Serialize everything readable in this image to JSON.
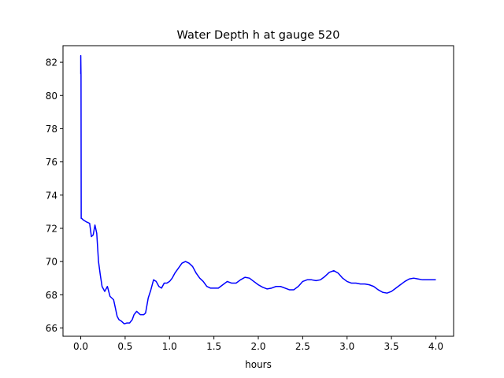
{
  "chart_data": {
    "type": "line",
    "title": "Water Depth h at gauge 520",
    "xlabel": "hours",
    "ylabel": "",
    "xlim": [
      -0.2,
      4.2
    ],
    "ylim": [
      65.5,
      83.0
    ],
    "xticks": [
      0.0,
      0.5,
      1.0,
      1.5,
      2.0,
      2.5,
      3.0,
      3.5,
      4.0
    ],
    "xtick_labels": [
      "0.0",
      "0.5",
      "1.0",
      "1.5",
      "2.0",
      "2.5",
      "3.0",
      "3.5",
      "4.0"
    ],
    "yticks": [
      66,
      68,
      70,
      72,
      74,
      76,
      78,
      80,
      82
    ],
    "ytick_labels": [
      "66",
      "68",
      "70",
      "72",
      "74",
      "76",
      "78",
      "80",
      "82"
    ],
    "grid": false,
    "legend": "none",
    "series": [
      {
        "color": "#0000ff",
        "x": [
          0.0,
          0.0,
          0.003,
          0.005,
          0.006,
          0.01,
          0.03,
          0.06,
          0.1,
          0.12,
          0.14,
          0.16,
          0.18,
          0.2,
          0.22,
          0.24,
          0.27,
          0.3,
          0.33,
          0.35,
          0.37,
          0.39,
          0.41,
          0.43,
          0.46,
          0.49,
          0.52,
          0.55,
          0.58,
          0.6,
          0.63,
          0.65,
          0.67,
          0.69,
          0.71,
          0.73,
          0.76,
          0.79,
          0.82,
          0.85,
          0.88,
          0.91,
          0.94,
          0.97,
          1.0,
          1.03,
          1.06,
          1.1,
          1.14,
          1.18,
          1.22,
          1.26,
          1.3,
          1.34,
          1.38,
          1.42,
          1.46,
          1.5,
          1.55,
          1.6,
          1.65,
          1.7,
          1.75,
          1.8,
          1.85,
          1.9,
          1.95,
          2.0,
          2.05,
          2.1,
          2.15,
          2.2,
          2.25,
          2.3,
          2.35,
          2.4,
          2.45,
          2.5,
          2.55,
          2.6,
          2.65,
          2.7,
          2.75,
          2.8,
          2.85,
          2.9,
          2.95,
          3.0,
          3.05,
          3.1,
          3.15,
          3.2,
          3.25,
          3.3,
          3.35,
          3.4,
          3.45,
          3.5,
          3.55,
          3.6,
          3.65,
          3.7,
          3.75,
          3.8,
          3.85,
          3.9,
          3.95,
          4.0
        ],
        "y": [
          81.3,
          82.4,
          81.2,
          72.6,
          72.6,
          72.6,
          72.5,
          72.4,
          72.3,
          71.5,
          71.6,
          72.2,
          71.7,
          70.0,
          69.2,
          68.5,
          68.2,
          68.5,
          67.9,
          67.8,
          67.7,
          67.2,
          66.7,
          66.5,
          66.4,
          66.25,
          66.3,
          66.3,
          66.5,
          66.8,
          67.0,
          66.9,
          66.8,
          66.8,
          66.8,
          66.9,
          67.8,
          68.3,
          68.9,
          68.8,
          68.5,
          68.4,
          68.7,
          68.7,
          68.8,
          69.0,
          69.3,
          69.6,
          69.9,
          70.0,
          69.9,
          69.7,
          69.3,
          69.0,
          68.8,
          68.5,
          68.4,
          68.4,
          68.4,
          68.6,
          68.8,
          68.7,
          68.7,
          68.9,
          69.05,
          69.0,
          68.8,
          68.6,
          68.45,
          68.35,
          68.4,
          68.5,
          68.5,
          68.4,
          68.3,
          68.3,
          68.5,
          68.8,
          68.9,
          68.9,
          68.85,
          68.9,
          69.1,
          69.35,
          69.45,
          69.3,
          69.0,
          68.8,
          68.7,
          68.7,
          68.65,
          68.65,
          68.6,
          68.5,
          68.3,
          68.15,
          68.1,
          68.2,
          68.4,
          68.6,
          68.8,
          68.95,
          69.0,
          68.95,
          68.9,
          68.9,
          68.9,
          68.9
        ]
      }
    ]
  }
}
